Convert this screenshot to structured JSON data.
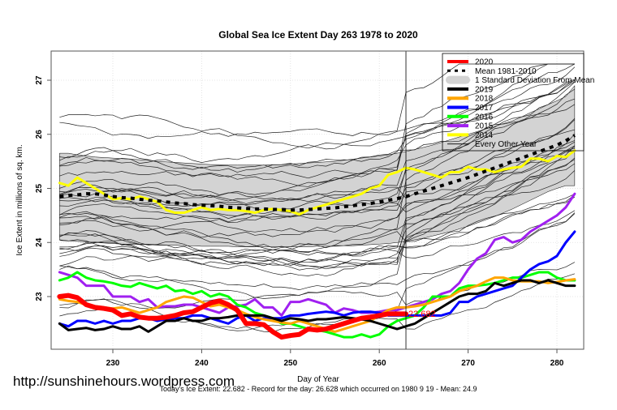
{
  "chart_data": {
    "type": "line",
    "title": "Global Sea Ice Extent Day 263 1978 to 2020",
    "xlabel": "Day of Year",
    "ylabel": "Ice Extent in millions of sq. km.",
    "xlim": [
      223,
      283
    ],
    "ylim": [
      22.0,
      27.5
    ],
    "x_ticks": [
      230,
      240,
      250,
      260,
      270,
      280
    ],
    "y_ticks": [
      23,
      24,
      25,
      26,
      27
    ],
    "grid": true,
    "current_day": 263,
    "legend_position": "top-right",
    "legend": [
      {
        "label": "2020",
        "color": "#ff0000",
        "style": "thick"
      },
      {
        "label": "Mean 1981-2010",
        "color": "#000000",
        "style": "dotted"
      },
      {
        "label": "1 Standard Deviation From Mean",
        "color": "#d3d3d3",
        "style": "band"
      },
      {
        "label": "2019",
        "color": "#000000",
        "style": "thick"
      },
      {
        "label": "2018",
        "color": "#ffa500",
        "style": "thick"
      },
      {
        "label": "2017",
        "color": "#0000ff",
        "style": "thick"
      },
      {
        "label": "2016",
        "color": "#00ff00",
        "style": "thick"
      },
      {
        "label": "2015",
        "color": "#a020f0",
        "style": "thick"
      },
      {
        "label": "2014",
        "color": "#ffff00",
        "style": "thick"
      },
      {
        "label": "Every Other Year",
        "color": "#000000",
        "style": "thin"
      }
    ],
    "x": [
      224,
      225,
      226,
      227,
      228,
      229,
      230,
      231,
      232,
      233,
      234,
      235,
      236,
      237,
      238,
      239,
      240,
      241,
      242,
      243,
      244,
      245,
      246,
      247,
      248,
      249,
      250,
      251,
      252,
      253,
      254,
      255,
      256,
      257,
      258,
      259,
      260,
      261,
      262,
      263,
      264,
      265,
      266,
      267,
      268,
      269,
      270,
      271,
      272,
      273,
      274,
      275,
      276,
      277,
      278,
      279,
      280,
      281,
      282
    ],
    "std_band": {
      "upper": [
        25.65,
        25.65,
        25.62,
        25.6,
        25.58,
        25.57,
        25.56,
        25.55,
        25.54,
        25.53,
        25.52,
        25.5,
        25.49,
        25.48,
        25.47,
        25.46,
        25.45,
        25.44,
        25.44,
        25.43,
        25.43,
        25.43,
        25.43,
        25.43,
        25.44,
        25.44,
        25.45,
        25.46,
        25.47,
        25.48,
        25.49,
        25.5,
        25.52,
        25.54,
        25.56,
        25.58,
        25.6,
        25.62,
        25.65,
        25.68,
        25.72,
        25.76,
        25.8,
        25.85,
        25.9,
        25.95,
        26.0,
        26.05,
        26.1,
        26.15,
        26.2,
        26.25,
        26.32,
        26.4,
        26.47,
        26.55,
        26.62,
        26.7,
        26.9
      ],
      "lower": [
        24.05,
        24.03,
        24.02,
        24.01,
        24.0,
        23.99,
        23.98,
        23.97,
        23.97,
        23.96,
        23.96,
        23.95,
        23.95,
        23.95,
        23.94,
        23.94,
        23.93,
        23.93,
        23.93,
        23.93,
        23.92,
        23.92,
        23.92,
        23.92,
        23.92,
        23.92,
        23.92,
        23.92,
        23.92,
        23.93,
        23.93,
        23.93,
        23.94,
        23.94,
        23.95,
        23.96,
        23.97,
        23.98,
        24.0,
        24.02,
        24.05,
        24.08,
        24.12,
        24.16,
        24.2,
        24.25,
        24.3,
        24.36,
        24.42,
        24.48,
        24.55,
        24.62,
        24.7,
        24.78,
        24.86,
        24.94,
        25.0,
        25.05,
        25.05
      ]
    },
    "series": [
      {
        "name": "Mean 1981-2010",
        "color": "#000000",
        "style": "dotted",
        "values": [
          24.85,
          24.87,
          24.88,
          24.9,
          24.9,
          24.88,
          24.85,
          24.83,
          24.82,
          24.8,
          24.78,
          24.77,
          24.75,
          24.73,
          24.72,
          24.7,
          24.69,
          24.68,
          24.67,
          24.65,
          24.64,
          24.63,
          24.62,
          24.62,
          24.61,
          24.61,
          24.6,
          24.6,
          24.61,
          24.62,
          24.63,
          24.64,
          24.66,
          24.68,
          24.7,
          24.72,
          24.75,
          24.78,
          24.81,
          24.85,
          24.9,
          24.95,
          25.0,
          25.05,
          25.1,
          25.15,
          25.2,
          25.26,
          25.32,
          25.38,
          25.44,
          25.5,
          25.56,
          25.62,
          25.68,
          25.74,
          25.8,
          25.88,
          25.98
        ]
      },
      {
        "name": "2014",
        "color": "#ffff00",
        "style": "thick",
        "values": [
          25.1,
          25.05,
          25.2,
          25.1,
          25.0,
          24.9,
          24.8,
          24.82,
          24.8,
          24.85,
          24.8,
          24.75,
          24.6,
          24.55,
          24.55,
          24.6,
          24.65,
          24.6,
          24.62,
          24.6,
          24.6,
          24.58,
          24.55,
          24.6,
          24.62,
          24.6,
          24.58,
          24.52,
          24.6,
          24.65,
          24.7,
          24.75,
          24.8,
          24.85,
          24.9,
          25.0,
          25.05,
          25.25,
          25.3,
          25.38,
          25.35,
          25.3,
          25.25,
          25.2,
          25.3,
          25.3,
          25.4,
          25.35,
          25.35,
          25.3,
          25.35,
          25.38,
          25.4,
          25.55,
          25.55,
          25.5,
          25.6,
          25.58,
          25.7
        ]
      },
      {
        "name": "2015",
        "color": "#a020f0",
        "style": "thick",
        "values": [
          23.45,
          23.4,
          23.35,
          23.2,
          23.2,
          23.2,
          23.0,
          23.0,
          23.0,
          22.9,
          22.95,
          22.8,
          22.82,
          22.82,
          22.85,
          22.85,
          22.8,
          22.75,
          22.7,
          22.8,
          22.82,
          22.85,
          22.95,
          22.8,
          22.8,
          22.65,
          22.9,
          22.9,
          22.95,
          22.9,
          22.85,
          22.7,
          22.78,
          22.75,
          22.7,
          22.7,
          22.72,
          22.75,
          22.75,
          22.8,
          22.85,
          22.9,
          22.95,
          23.05,
          23.1,
          23.25,
          23.5,
          23.7,
          23.8,
          24.05,
          24.1,
          24.0,
          24.05,
          24.2,
          24.3,
          24.4,
          24.5,
          24.65,
          24.9
        ]
      },
      {
        "name": "2016",
        "color": "#00ff00",
        "style": "thick",
        "values": [
          23.3,
          23.35,
          23.45,
          23.35,
          23.3,
          23.28,
          23.25,
          23.2,
          23.18,
          23.25,
          23.2,
          23.15,
          23.2,
          23.1,
          23.12,
          23.05,
          23.1,
          23.0,
          23.05,
          23.0,
          22.85,
          22.8,
          22.7,
          22.65,
          22.6,
          22.5,
          22.5,
          22.45,
          22.4,
          22.38,
          22.35,
          22.3,
          22.25,
          22.25,
          22.3,
          22.25,
          22.3,
          22.45,
          22.55,
          22.6,
          22.65,
          22.8,
          23.0,
          23.0,
          23.0,
          23.15,
          23.2,
          23.2,
          23.22,
          23.25,
          23.3,
          23.35,
          23.35,
          23.4,
          23.45,
          23.45,
          23.35,
          23.3,
          23.3
        ]
      },
      {
        "name": "2017",
        "color": "#0000ff",
        "style": "thick",
        "values": [
          22.5,
          22.45,
          22.55,
          22.55,
          22.5,
          22.55,
          22.5,
          22.55,
          22.55,
          22.6,
          22.6,
          22.55,
          22.58,
          22.6,
          22.6,
          22.65,
          22.65,
          22.6,
          22.55,
          22.5,
          22.6,
          22.65,
          22.55,
          22.6,
          22.6,
          22.6,
          22.65,
          22.65,
          22.68,
          22.7,
          22.72,
          22.7,
          22.65,
          22.7,
          22.72,
          22.72,
          22.7,
          22.65,
          22.65,
          22.65,
          22.65,
          22.65,
          22.65,
          22.65,
          22.7,
          22.9,
          22.9,
          23.0,
          23.05,
          23.1,
          23.15,
          23.2,
          23.35,
          23.5,
          23.6,
          23.65,
          23.75,
          24.0,
          24.2
        ]
      },
      {
        "name": "2018",
        "color": "#ffa500",
        "style": "thick",
        "values": [
          22.95,
          22.92,
          22.9,
          22.85,
          22.82,
          22.8,
          22.78,
          22.8,
          22.75,
          22.7,
          22.75,
          22.8,
          22.9,
          22.95,
          23.0,
          22.98,
          22.9,
          22.82,
          22.85,
          22.8,
          22.75,
          22.68,
          22.62,
          22.58,
          22.55,
          22.52,
          22.5,
          22.55,
          22.5,
          22.45,
          22.4,
          22.35,
          22.4,
          22.45,
          22.5,
          22.55,
          22.65,
          22.75,
          22.8,
          22.8,
          22.82,
          22.85,
          22.9,
          22.95,
          23.0,
          23.1,
          23.15,
          23.2,
          23.28,
          23.35,
          23.35,
          23.3,
          23.28,
          23.28,
          23.28,
          23.25,
          23.27,
          23.3,
          23.32
        ]
      },
      {
        "name": "2019",
        "color": "#000000",
        "style": "thick",
        "values": [
          22.5,
          22.38,
          22.4,
          22.42,
          22.38,
          22.4,
          22.45,
          22.4,
          22.4,
          22.45,
          22.35,
          22.45,
          22.55,
          22.55,
          22.6,
          22.55,
          22.55,
          22.6,
          22.6,
          22.62,
          22.65,
          22.65,
          22.65,
          22.65,
          22.6,
          22.55,
          22.6,
          22.58,
          22.55,
          22.58,
          22.58,
          22.6,
          22.62,
          22.6,
          22.58,
          22.55,
          22.5,
          22.45,
          22.4,
          22.45,
          22.5,
          22.6,
          22.7,
          22.8,
          22.9,
          23.0,
          23.05,
          23.05,
          23.1,
          23.25,
          23.2,
          23.25,
          23.3,
          23.3,
          23.25,
          23.3,
          23.25,
          23.2,
          23.2
        ]
      },
      {
        "name": "2020",
        "color": "#ff0000",
        "style": "thick",
        "values": [
          23.0,
          23.02,
          22.98,
          22.85,
          22.8,
          22.78,
          22.75,
          22.65,
          22.68,
          22.62,
          22.6,
          22.6,
          22.62,
          22.65,
          22.7,
          22.72,
          22.8,
          22.88,
          22.92,
          22.85,
          22.75,
          22.5,
          22.5,
          22.48,
          22.35,
          22.25,
          22.28,
          22.3,
          22.4,
          22.38,
          22.4,
          22.45,
          22.5,
          22.55,
          22.6,
          22.62,
          22.65,
          22.68,
          22.68,
          22.68
        ]
      }
    ],
    "annotation": {
      "text": "22.682",
      "day": 263,
      "value": 22.682
    }
  },
  "footer": {
    "watermark": "http://sunshinehours.wordpress.com",
    "summary": "Today's Ice Extent: 22.682  - Record for the day: 26.628 which occurred on 1980 9 19  - Mean: 24.9"
  }
}
